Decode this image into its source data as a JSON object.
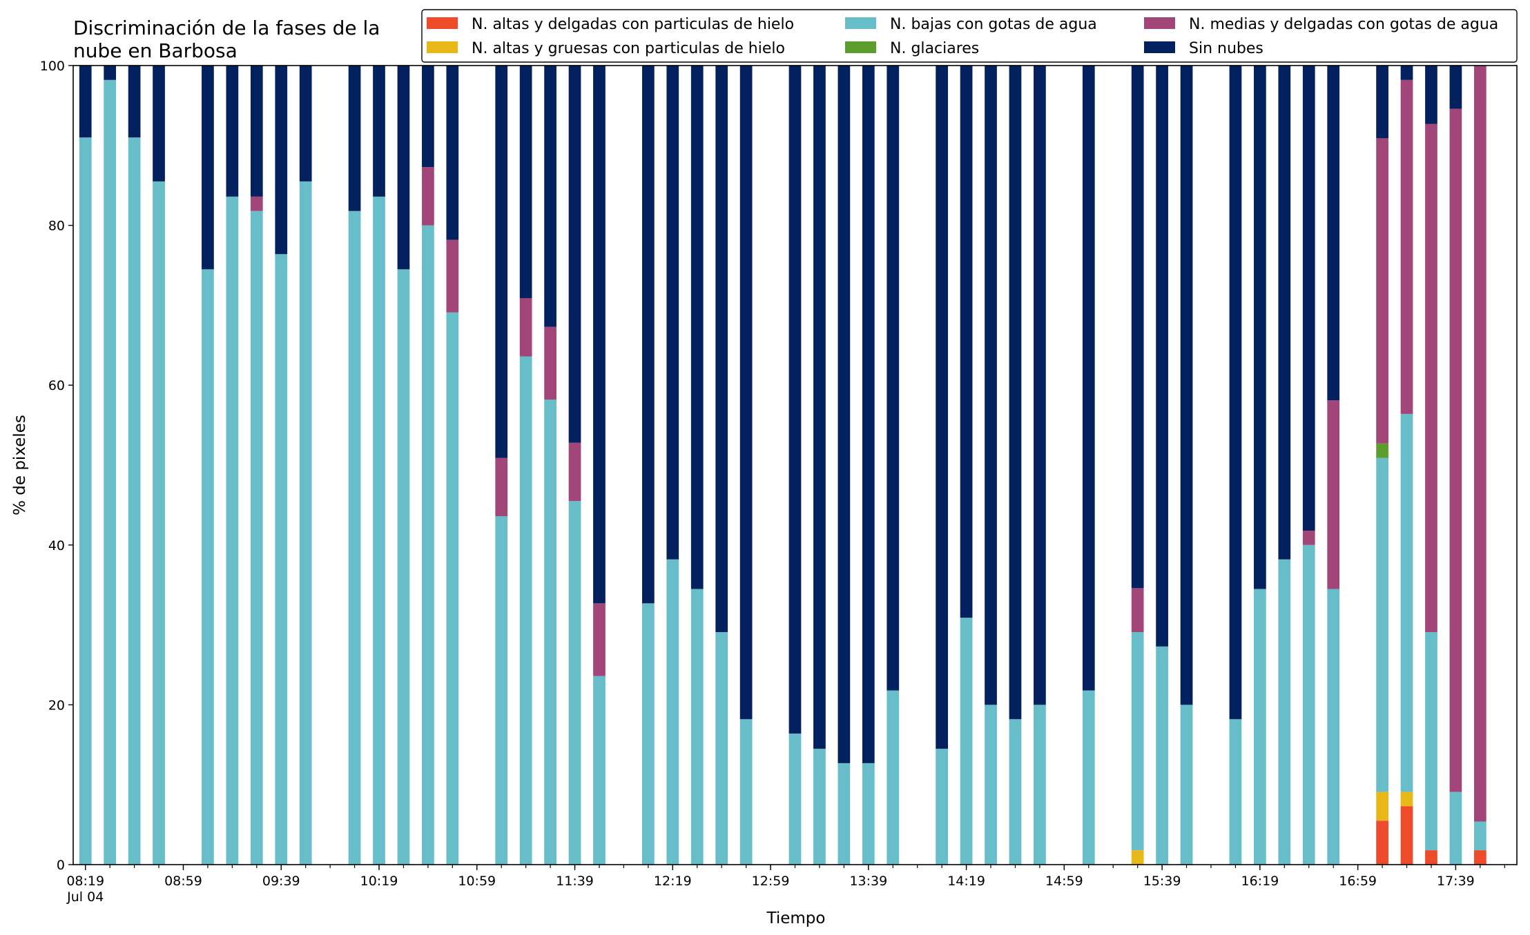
{
  "chart_data": {
    "type": "bar",
    "stacked": true,
    "title_lines": [
      "Discriminación de la fases de la",
      "nube en Barbosa"
    ],
    "xlabel": "Tiempo",
    "ylabel": "% de pixeles",
    "ylim": [
      0,
      100
    ],
    "yticks": [
      0,
      20,
      40,
      60,
      80,
      100
    ],
    "x_range_minutes": [
      "08:14",
      "18:04"
    ],
    "x_tick_labels": [
      {
        "time": "08:19",
        "text": "08:19",
        "sub": "Jul 04"
      },
      {
        "time": "08:59",
        "text": "08:59"
      },
      {
        "time": "09:39",
        "text": "09:39"
      },
      {
        "time": "10:19",
        "text": "10:19"
      },
      {
        "time": "10:59",
        "text": "10:59"
      },
      {
        "time": "11:39",
        "text": "11:39"
      },
      {
        "time": "12:19",
        "text": "12:19"
      },
      {
        "time": "12:59",
        "text": "12:59"
      },
      {
        "time": "13:39",
        "text": "13:39"
      },
      {
        "time": "14:19",
        "text": "14:19"
      },
      {
        "time": "14:59",
        "text": "14:59"
      },
      {
        "time": "15:39",
        "text": "15:39"
      },
      {
        "time": "16:19",
        "text": "16:19"
      },
      {
        "time": "16:59",
        "text": "16:59"
      },
      {
        "time": "17:39",
        "text": "17:39"
      }
    ],
    "minor_tick_interval_minutes": 10,
    "grid": false,
    "legend_position": "top-right",
    "series": [
      {
        "key": "altas_delgadas",
        "name": "N. altas y delgadas con particulas de hielo",
        "color": "#ee4b2b"
      },
      {
        "key": "altas_gruesas",
        "name": "N. altas y gruesas con particulas de hielo",
        "color": "#e8b818"
      },
      {
        "key": "bajas",
        "name": "N. bajas con gotas de agua",
        "color": "#67bdc8"
      },
      {
        "key": "glaciares",
        "name": "N. glaciares",
        "color": "#5b9e2e"
      },
      {
        "key": "medias",
        "name": "N. medias y delgadas con gotas de agua",
        "color": "#a2467a"
      },
      {
        "key": "sin_nubes",
        "name": "Sin nubes",
        "color": "#03215e"
      }
    ],
    "stack_order": [
      "altas_delgadas",
      "altas_gruesas",
      "bajas",
      "glaciares",
      "medias",
      "sin_nubes"
    ],
    "bars": [
      {
        "time": "08:19",
        "altas_delgadas": 0,
        "altas_gruesas": 0,
        "bajas": 91,
        "glaciares": 0,
        "medias": 0,
        "sin_nubes": 9
      },
      {
        "time": "08:29",
        "altas_delgadas": 0,
        "altas_gruesas": 0,
        "bajas": 98.2,
        "glaciares": 0,
        "medias": 0,
        "sin_nubes": 1.8
      },
      {
        "time": "08:39",
        "altas_delgadas": 0,
        "altas_gruesas": 0,
        "bajas": 91,
        "glaciares": 0,
        "medias": 0,
        "sin_nubes": 9
      },
      {
        "time": "08:49",
        "altas_delgadas": 0,
        "altas_gruesas": 0,
        "bajas": 85.5,
        "glaciares": 0,
        "medias": 0,
        "sin_nubes": 14.5
      },
      {
        "time": "09:09",
        "altas_delgadas": 0,
        "altas_gruesas": 0,
        "bajas": 74.5,
        "glaciares": 0,
        "medias": 0,
        "sin_nubes": 25.5
      },
      {
        "time": "09:19",
        "altas_delgadas": 0,
        "altas_gruesas": 0,
        "bajas": 83.6,
        "glaciares": 0,
        "medias": 0,
        "sin_nubes": 16.4
      },
      {
        "time": "09:29",
        "altas_delgadas": 0,
        "altas_gruesas": 0,
        "bajas": 81.8,
        "glaciares": 0,
        "medias": 1.8,
        "sin_nubes": 16.4
      },
      {
        "time": "09:39",
        "altas_delgadas": 0,
        "altas_gruesas": 0,
        "bajas": 76.4,
        "glaciares": 0,
        "medias": 0,
        "sin_nubes": 23.6
      },
      {
        "time": "09:49",
        "altas_delgadas": 0,
        "altas_gruesas": 0,
        "bajas": 85.5,
        "glaciares": 0,
        "medias": 0,
        "sin_nubes": 14.5
      },
      {
        "time": "10:09",
        "altas_delgadas": 0,
        "altas_gruesas": 0,
        "bajas": 81.8,
        "glaciares": 0,
        "medias": 0,
        "sin_nubes": 18.2
      },
      {
        "time": "10:19",
        "altas_delgadas": 0,
        "altas_gruesas": 0,
        "bajas": 83.6,
        "glaciares": 0,
        "medias": 0,
        "sin_nubes": 16.4
      },
      {
        "time": "10:29",
        "altas_delgadas": 0,
        "altas_gruesas": 0,
        "bajas": 74.5,
        "glaciares": 0,
        "medias": 0,
        "sin_nubes": 25.5
      },
      {
        "time": "10:39",
        "altas_delgadas": 0,
        "altas_gruesas": 0,
        "bajas": 80,
        "glaciares": 0,
        "medias": 7.3,
        "sin_nubes": 12.7
      },
      {
        "time": "10:49",
        "altas_delgadas": 0,
        "altas_gruesas": 0,
        "bajas": 69.1,
        "glaciares": 0,
        "medias": 9.1,
        "sin_nubes": 21.8
      },
      {
        "time": "11:09",
        "altas_delgadas": 0,
        "altas_gruesas": 0,
        "bajas": 43.6,
        "glaciares": 0,
        "medias": 7.3,
        "sin_nubes": 49.1
      },
      {
        "time": "11:19",
        "altas_delgadas": 0,
        "altas_gruesas": 0,
        "bajas": 63.6,
        "glaciares": 0,
        "medias": 7.3,
        "sin_nubes": 29.1
      },
      {
        "time": "11:29",
        "altas_delgadas": 0,
        "altas_gruesas": 0,
        "bajas": 58.2,
        "glaciares": 0,
        "medias": 9.1,
        "sin_nubes": 32.7
      },
      {
        "time": "11:39",
        "altas_delgadas": 0,
        "altas_gruesas": 0,
        "bajas": 45.5,
        "glaciares": 0,
        "medias": 7.3,
        "sin_nubes": 47.2
      },
      {
        "time": "11:49",
        "altas_delgadas": 0,
        "altas_gruesas": 0,
        "bajas": 23.6,
        "glaciares": 0,
        "medias": 9.1,
        "sin_nubes": 67.3
      },
      {
        "time": "12:09",
        "altas_delgadas": 0,
        "altas_gruesas": 0,
        "bajas": 32.7,
        "glaciares": 0,
        "medias": 0,
        "sin_nubes": 67.3
      },
      {
        "time": "12:19",
        "altas_delgadas": 0,
        "altas_gruesas": 0,
        "bajas": 38.2,
        "glaciares": 0,
        "medias": 0,
        "sin_nubes": 61.8
      },
      {
        "time": "12:29",
        "altas_delgadas": 0,
        "altas_gruesas": 0,
        "bajas": 34.5,
        "glaciares": 0,
        "medias": 0,
        "sin_nubes": 65.5
      },
      {
        "time": "12:39",
        "altas_delgadas": 0,
        "altas_gruesas": 0,
        "bajas": 29.1,
        "glaciares": 0,
        "medias": 0,
        "sin_nubes": 70.9
      },
      {
        "time": "12:49",
        "altas_delgadas": 0,
        "altas_gruesas": 0,
        "bajas": 18.2,
        "glaciares": 0,
        "medias": 0,
        "sin_nubes": 81.8
      },
      {
        "time": "13:09",
        "altas_delgadas": 0,
        "altas_gruesas": 0,
        "bajas": 16.4,
        "glaciares": 0,
        "medias": 0,
        "sin_nubes": 83.6
      },
      {
        "time": "13:19",
        "altas_delgadas": 0,
        "altas_gruesas": 0,
        "bajas": 14.5,
        "glaciares": 0,
        "medias": 0,
        "sin_nubes": 85.5
      },
      {
        "time": "13:29",
        "altas_delgadas": 0,
        "altas_gruesas": 0,
        "bajas": 12.7,
        "glaciares": 0,
        "medias": 0,
        "sin_nubes": 87.3
      },
      {
        "time": "13:39",
        "altas_delgadas": 0,
        "altas_gruesas": 0,
        "bajas": 12.7,
        "glaciares": 0,
        "medias": 0,
        "sin_nubes": 87.3
      },
      {
        "time": "13:49",
        "altas_delgadas": 0,
        "altas_gruesas": 0,
        "bajas": 21.8,
        "glaciares": 0,
        "medias": 0,
        "sin_nubes": 78.2
      },
      {
        "time": "14:09",
        "altas_delgadas": 0,
        "altas_gruesas": 0,
        "bajas": 14.5,
        "glaciares": 0,
        "medias": 0,
        "sin_nubes": 85.5
      },
      {
        "time": "14:19",
        "altas_delgadas": 0,
        "altas_gruesas": 0,
        "bajas": 30.9,
        "glaciares": 0,
        "medias": 0,
        "sin_nubes": 69.1
      },
      {
        "time": "14:29",
        "altas_delgadas": 0,
        "altas_gruesas": 0,
        "bajas": 20,
        "glaciares": 0,
        "medias": 0,
        "sin_nubes": 80
      },
      {
        "time": "14:39",
        "altas_delgadas": 0,
        "altas_gruesas": 0,
        "bajas": 18.2,
        "glaciares": 0,
        "medias": 0,
        "sin_nubes": 81.8
      },
      {
        "time": "14:49",
        "altas_delgadas": 0,
        "altas_gruesas": 0,
        "bajas": 20,
        "glaciares": 0,
        "medias": 0,
        "sin_nubes": 80
      },
      {
        "time": "15:09",
        "altas_delgadas": 0,
        "altas_gruesas": 0,
        "bajas": 21.8,
        "glaciares": 0,
        "medias": 0,
        "sin_nubes": 78.2
      },
      {
        "time": "15:29",
        "altas_delgadas": 0,
        "altas_gruesas": 1.8,
        "bajas": 27.3,
        "glaciares": 0,
        "medias": 5.5,
        "sin_nubes": 65.4
      },
      {
        "time": "15:39",
        "altas_delgadas": 0,
        "altas_gruesas": 0,
        "bajas": 27.3,
        "glaciares": 0,
        "medias": 0,
        "sin_nubes": 72.7
      },
      {
        "time": "15:49",
        "altas_delgadas": 0,
        "altas_gruesas": 0,
        "bajas": 20,
        "glaciares": 0,
        "medias": 0,
        "sin_nubes": 80
      },
      {
        "time": "16:09",
        "altas_delgadas": 0,
        "altas_gruesas": 0,
        "bajas": 18.2,
        "glaciares": 0,
        "medias": 0,
        "sin_nubes": 81.8
      },
      {
        "time": "16:19",
        "altas_delgadas": 0,
        "altas_gruesas": 0,
        "bajas": 34.5,
        "glaciares": 0,
        "medias": 0,
        "sin_nubes": 65.5
      },
      {
        "time": "16:29",
        "altas_delgadas": 0,
        "altas_gruesas": 0,
        "bajas": 38.2,
        "glaciares": 0,
        "medias": 0,
        "sin_nubes": 61.8
      },
      {
        "time": "16:39",
        "altas_delgadas": 0,
        "altas_gruesas": 0,
        "bajas": 40,
        "glaciares": 0,
        "medias": 1.8,
        "sin_nubes": 58.2
      },
      {
        "time": "16:49",
        "altas_delgadas": 0,
        "altas_gruesas": 0,
        "bajas": 34.5,
        "glaciares": 0,
        "medias": 23.6,
        "sin_nubes": 41.9
      },
      {
        "time": "17:09",
        "altas_delgadas": 5.5,
        "altas_gruesas": 3.6,
        "bajas": 41.8,
        "glaciares": 1.8,
        "medias": 38.2,
        "sin_nubes": 9.1
      },
      {
        "time": "17:19",
        "altas_delgadas": 7.3,
        "altas_gruesas": 1.8,
        "bajas": 47.3,
        "glaciares": 0,
        "medias": 41.8,
        "sin_nubes": 1.8
      },
      {
        "time": "17:29",
        "altas_delgadas": 1.8,
        "altas_gruesas": 0,
        "bajas": 27.3,
        "glaciares": 0,
        "medias": 63.6,
        "sin_nubes": 7.3
      },
      {
        "time": "17:39",
        "altas_delgadas": 0,
        "altas_gruesas": 0,
        "bajas": 9.1,
        "glaciares": 0,
        "medias": 85.5,
        "sin_nubes": 5.4
      },
      {
        "time": "17:49",
        "altas_delgadas": 1.8,
        "altas_gruesas": 0,
        "bajas": 3.6,
        "glaciares": 0,
        "medias": 94.6,
        "sin_nubes": 0
      }
    ]
  }
}
